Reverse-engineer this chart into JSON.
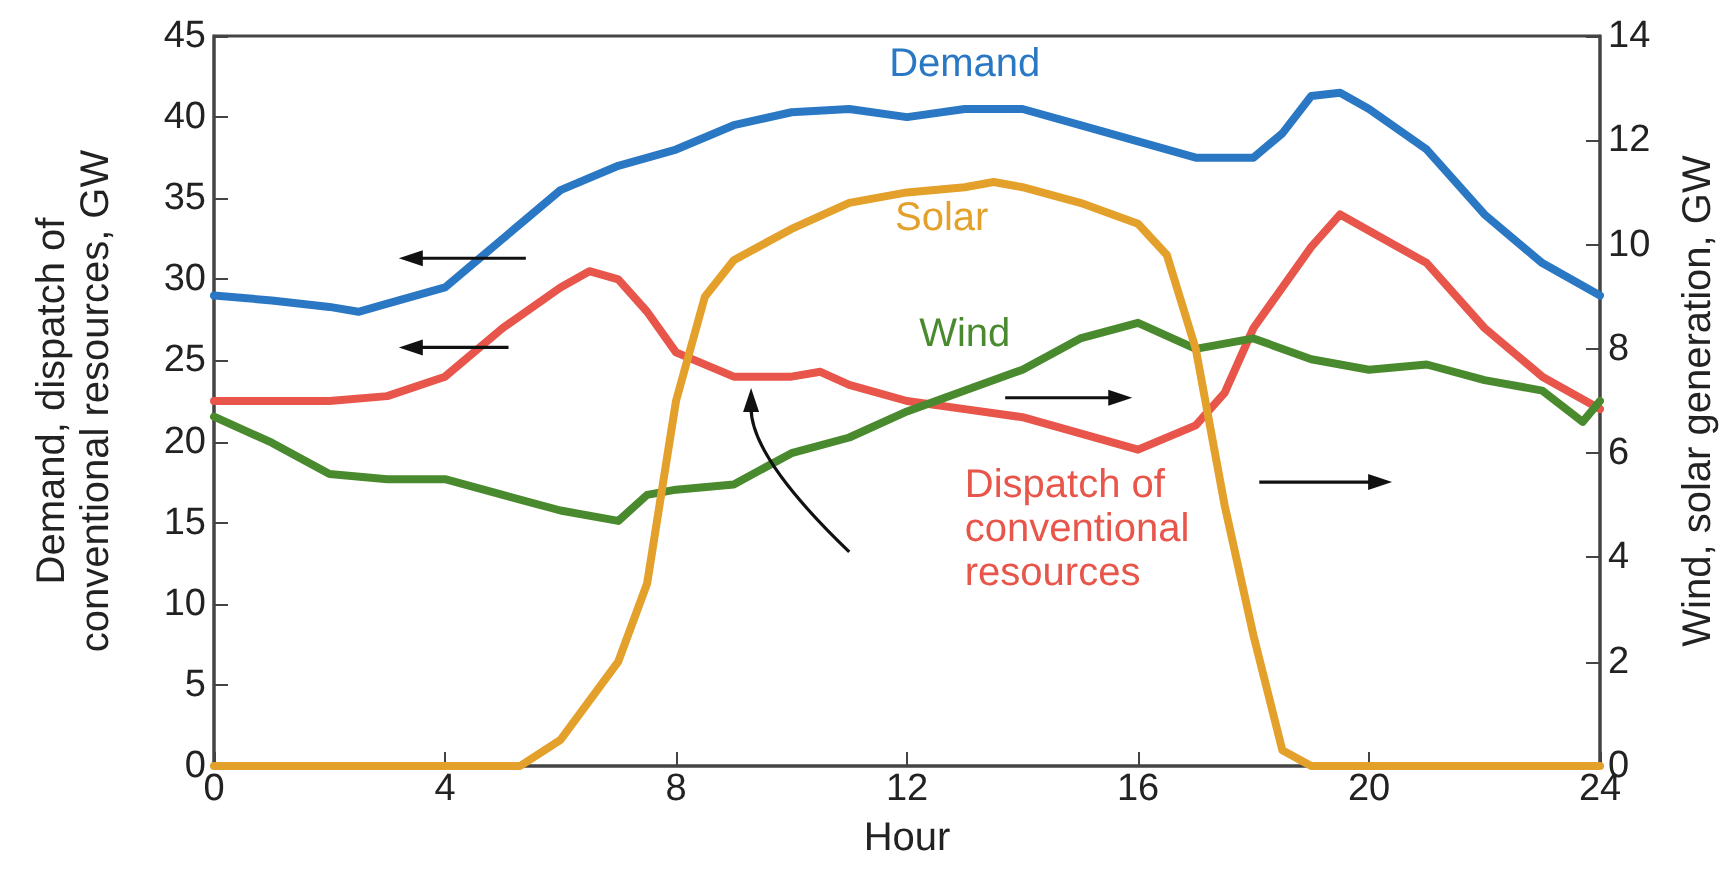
{
  "chart_data": {
    "type": "line",
    "xlabel": "Hour",
    "ylabel": "Demand, dispatch of conventional resources, GW",
    "y2label": "Wind, solar generation, GW",
    "xlim": [
      0,
      24
    ],
    "xticks": [
      0,
      4,
      8,
      12,
      16,
      20,
      24
    ],
    "ylim": [
      0,
      45
    ],
    "yticks": [
      0,
      5,
      10,
      15,
      20,
      25,
      30,
      35,
      40,
      45
    ],
    "y2lim": [
      0,
      14
    ],
    "y2ticks": [
      0,
      2,
      4,
      6,
      8,
      10,
      12,
      14
    ],
    "grid": false,
    "legend": false,
    "marker": "none",
    "line_style": "solid",
    "series": [
      {
        "name": "Demand",
        "color": "#2a78c4",
        "x": [
          0,
          1,
          2,
          2.5,
          3,
          4,
          5,
          6,
          7,
          8,
          9,
          10,
          11,
          12,
          13,
          14,
          15,
          16,
          17,
          18,
          18.5,
          19,
          19.5,
          20,
          21,
          22,
          23,
          24
        ],
        "values": [
          29,
          28.7,
          28.3,
          28,
          28.5,
          29.5,
          32.5,
          35.5,
          37,
          38,
          39.5,
          40.3,
          40.5,
          40,
          40.5,
          40.5,
          39.5,
          38.5,
          37.5,
          37.5,
          39,
          41.3,
          41.5,
          40.5,
          38,
          34,
          31,
          29
        ]
      },
      {
        "name": "Dispatch of conventional resources",
        "color": "#e8554a",
        "x": [
          0,
          1,
          2,
          3,
          4,
          5,
          6,
          6.5,
          7,
          7.5,
          8,
          9,
          10,
          10.5,
          11,
          12,
          13,
          14,
          15,
          16,
          17,
          17.5,
          18,
          19,
          19.5,
          20,
          21,
          22,
          23,
          24
        ],
        "values": [
          22.5,
          22.5,
          22.5,
          22.8,
          24,
          27,
          29.5,
          30.5,
          30,
          28,
          25.5,
          24,
          24,
          24.3,
          23.5,
          22.5,
          22,
          21.5,
          20.5,
          19.5,
          21,
          23,
          27,
          32,
          34,
          33,
          31,
          27,
          24,
          22
        ]
      },
      {
        "name": "Wind",
        "color": "#4a8a2e",
        "axis": "y2",
        "x": [
          0,
          1,
          2,
          3,
          4,
          5,
          6,
          7,
          7.5,
          8,
          9,
          10,
          11,
          12,
          13,
          14,
          15,
          16,
          17,
          18,
          19,
          20,
          21,
          22,
          23,
          23.7,
          24
        ],
        "values": [
          6.7,
          6.2,
          5.6,
          5.5,
          5.5,
          5.2,
          4.9,
          4.7,
          5.2,
          5.3,
          5.4,
          6,
          6.3,
          6.8,
          7.2,
          7.6,
          8.2,
          8.5,
          8,
          8.2,
          7.8,
          7.6,
          7.7,
          7.4,
          7.2,
          6.6,
          7
        ]
      },
      {
        "name": "Solar",
        "color": "#e3a02a",
        "axis": "y2",
        "x": [
          0,
          5.3,
          6,
          7,
          7.5,
          8,
          8.5,
          9,
          10,
          11,
          12,
          13,
          13.5,
          14,
          15,
          16,
          16.5,
          17,
          17.5,
          18,
          18.5,
          19,
          24
        ],
        "values": [
          0,
          0,
          0.5,
          2,
          3.5,
          7,
          9,
          9.7,
          10.3,
          10.8,
          11,
          11.1,
          11.2,
          11.1,
          10.8,
          10.4,
          9.8,
          8,
          5,
          2.5,
          0.3,
          0,
          0
        ]
      }
    ]
  }
}
